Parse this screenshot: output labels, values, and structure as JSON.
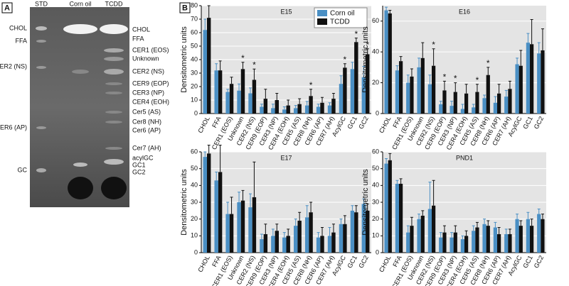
{
  "panel_a": {
    "label": "A",
    "lanes": [
      "STD",
      "Corn oil",
      "TCDD"
    ],
    "left_labels": [
      "CHOL",
      "FFA",
      "CER2 (NS)",
      "CER6 (AP)",
      "GC"
    ],
    "right_labels": [
      "CHOL",
      "FFA",
      "CER1 (EOS)",
      "Unknown",
      "CER2 (NS)",
      "CER9 (EOP)",
      "CER3 (NP)",
      "CER4 (EOH)",
      "Cer5 (AS)",
      "Cer8 (NH)",
      "Cer6 (AP)",
      "Cer7 (AH)",
      "acylGC",
      "GC1",
      "GC2"
    ]
  },
  "panel_b_label": "B",
  "chart_data": [
    {
      "type": "bar",
      "title": "E15",
      "y_label": "Densitometric units",
      "categories": [
        "CHOL",
        "FFA",
        "CER1 (EOS)",
        "Unknown",
        "CER2 (NS)",
        "CER9 (EOP)",
        "CER3 (NP)",
        "CER4 (EOH)",
        "CER5 (AS)",
        "CER8 (NH)",
        "CER6 (AP)",
        "CER7 (AH)",
        "AcylGC",
        "GC1",
        "GC2"
      ],
      "series": [
        {
          "name": "Corn oil",
          "color": "#4a8fc4",
          "values": [
            62,
            32,
            16,
            17,
            15,
            5,
            4,
            3,
            4,
            6,
            5,
            6,
            22,
            33,
            27
          ],
          "errors": [
            8,
            5,
            2,
            5,
            4,
            2,
            3,
            2,
            2,
            3,
            2,
            2,
            6,
            5,
            8
          ]
        },
        {
          "name": "TCDD",
          "color": "#111111",
          "values": [
            71,
            32,
            22,
            33,
            25,
            11,
            10,
            6,
            7,
            13,
            8,
            11,
            34,
            53,
            44
          ],
          "errors": [
            9,
            7,
            5,
            5,
            8,
            7,
            5,
            4,
            4,
            5,
            4,
            4,
            3,
            3,
            4
          ],
          "annotations": [
            null,
            null,
            null,
            "*",
            "*",
            null,
            null,
            null,
            null,
            "*",
            null,
            null,
            "*",
            "*",
            "*"
          ]
        }
      ],
      "ylim": [
        0,
        80
      ],
      "yticks": [
        0,
        10,
        20,
        30,
        40,
        50,
        60,
        70,
        80
      ],
      "grid": true,
      "legend": "upper right"
    },
    {
      "type": "bar",
      "title": "E16",
      "y_label": "Densitometric units",
      "categories": [
        "CHOL",
        "FFA",
        "CER1 (EOS)",
        "Unknown",
        "CER2 (NS)",
        "CER9 (EOP)",
        "CER3 (NP)",
        "CER4 (EOH)",
        "CER5 (AS)",
        "CER8 (NH)",
        "CER6 (AP)",
        "CER7 (AH)",
        "AcylGC",
        "GC1",
        "GC2"
      ],
      "series": [
        {
          "name": "Corn oil",
          "color": "#4a8fc4",
          "values": [
            67,
            28,
            20,
            30,
            19,
            6,
            5,
            3,
            4,
            10,
            7,
            11,
            32,
            46,
            39
          ],
          "errors": [
            2,
            3,
            5,
            6,
            6,
            2,
            3,
            3,
            2,
            2,
            4,
            4,
            4,
            6,
            7
          ]
        },
        {
          "name": "TCDD",
          "color": "#111111",
          "values": [
            65,
            34,
            24,
            36,
            31,
            15,
            14,
            13,
            14,
            25,
            13,
            16,
            31,
            45,
            41
          ],
          "errors": [
            2,
            3,
            5,
            10,
            11,
            6,
            6,
            6,
            5,
            5,
            6,
            5,
            10,
            16,
            14
          ],
          "annotations": [
            null,
            null,
            null,
            null,
            "*",
            "*",
            "*",
            null,
            "*",
            "*",
            null,
            null,
            null,
            null,
            null
          ]
        }
      ],
      "ylim": [
        0,
        70
      ],
      "yticks": [
        0,
        20,
        40,
        60
      ],
      "grid": true
    },
    {
      "type": "bar",
      "title": "E17",
      "y_label": "Densitometric units",
      "categories": [
        "CHOL",
        "FFA",
        "CER1 (EOS)",
        "Unknown",
        "CER2 (NS)",
        "CER9 (EOP)",
        "CER3 (NP)",
        "CER4 (EOH)",
        "CER5 (AS)",
        "CER8 (NH)",
        "CER6 (AP)",
        "CER7 (AH)",
        "AcylGC",
        "GC1",
        "GC2"
      ],
      "series": [
        {
          "name": "Corn oil",
          "color": "#4a8fc4",
          "values": [
            57,
            43,
            23,
            30,
            27,
            8,
            10,
            9,
            16,
            21,
            9,
            10,
            17,
            25,
            29
          ],
          "errors": [
            3,
            5,
            7,
            6,
            8,
            3,
            4,
            3,
            4,
            7,
            3,
            5,
            3,
            3,
            3
          ]
        },
        {
          "name": "TCDD",
          "color": "#111111",
          "values": [
            59,
            48,
            23,
            31,
            33,
            11,
            13,
            10,
            19,
            24,
            10,
            12,
            17,
            24,
            25
          ],
          "errors": [
            5,
            16,
            10,
            6,
            21,
            6,
            4,
            4,
            5,
            6,
            5,
            5,
            5,
            4,
            4
          ]
        }
      ],
      "ylim": [
        0,
        60
      ],
      "yticks": [
        0,
        10,
        20,
        30,
        40,
        50,
        60
      ],
      "grid": true
    },
    {
      "type": "bar",
      "title": "PND1",
      "y_label": "Densitometric units",
      "categories": [
        "CHOL",
        "FFA",
        "CER1 (EOS)",
        "Unknown",
        "CER2 (NS)",
        "CER9 (EOP)",
        "CER3 (NP)",
        "CER4 (EOH)",
        "CER5 (AS)",
        "CER8 (NH)",
        "CER6 (AP)",
        "CER7 (AH)",
        "AcylGC",
        "GC1",
        "GC2"
      ],
      "series": [
        {
          "name": "Corn oil",
          "color": "#4a8fc4",
          "values": [
            53,
            41,
            12,
            20,
            26,
            9,
            9,
            8,
            13,
            17,
            15,
            11,
            20,
            20,
            23
          ],
          "errors": [
            3,
            2,
            4,
            3,
            16,
            3,
            3,
            2,
            3,
            3,
            3,
            3,
            3,
            4,
            3
          ]
        },
        {
          "name": "TCDD",
          "color": "#111111",
          "values": [
            55,
            41,
            16,
            22,
            28,
            12,
            12,
            10,
            15,
            16,
            11,
            11,
            16,
            16,
            20
          ],
          "errors": [
            4,
            3,
            5,
            3,
            15,
            4,
            4,
            3,
            3,
            3,
            4,
            3,
            3,
            4,
            3
          ]
        }
      ],
      "ylim": [
        0,
        60
      ],
      "yticks": [
        0,
        10,
        20,
        30,
        40,
        50,
        60
      ],
      "grid": true
    }
  ]
}
